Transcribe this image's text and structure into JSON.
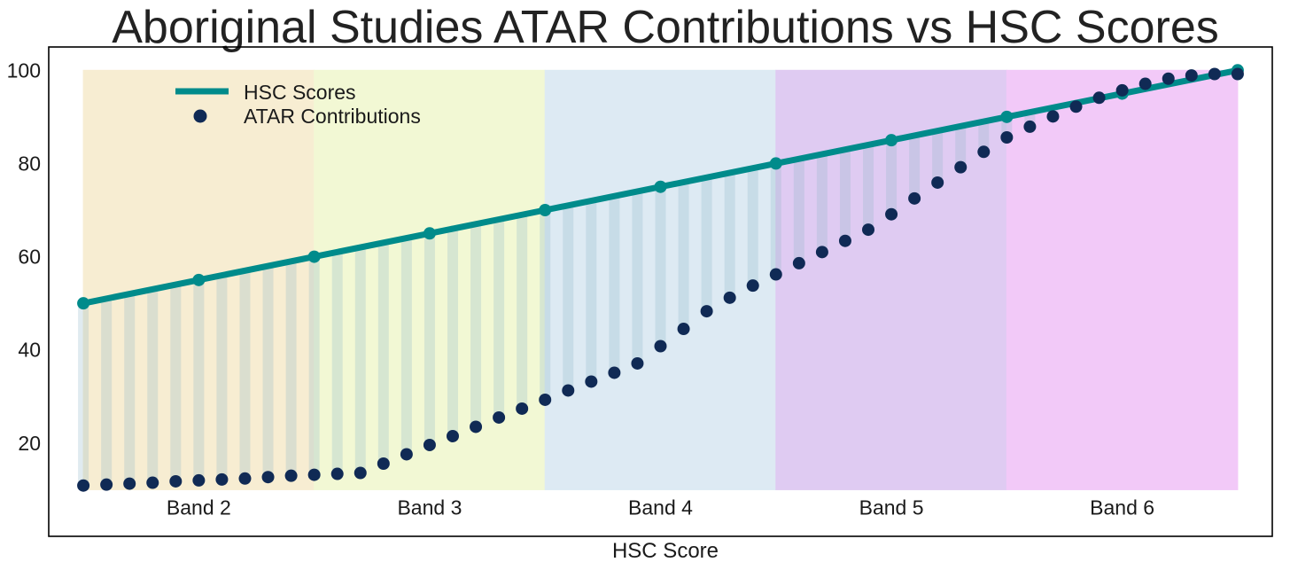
{
  "chart_data": {
    "type": "line",
    "title": "Aboriginal Studies ATAR Contributions vs HSC Scores",
    "xlabel": "HSC Score",
    "ylabel": "",
    "xlim": [
      48.5,
      101.5
    ],
    "ylim": [
      0,
      105
    ],
    "yticks": [
      20,
      40,
      60,
      80,
      100
    ],
    "grid": false,
    "legend_position": "top-left",
    "bands": [
      {
        "label": "Band 2",
        "from": 50,
        "to": 60,
        "color": "#f7edd2"
      },
      {
        "label": "Band 3",
        "from": 60,
        "to": 70,
        "color": "#f2f8d4"
      },
      {
        "label": "Band 4",
        "from": 70,
        "to": 80,
        "color": "#ddeaf3"
      },
      {
        "label": "Band 5",
        "from": 80,
        "to": 90,
        "color": "#dfcbf2"
      },
      {
        "label": "Band 6",
        "from": 90,
        "to": 100,
        "color": "#f2c9f8"
      }
    ],
    "band_range": [
      10,
      100
    ],
    "series": [
      {
        "name": "HSC Scores",
        "style": "line",
        "color": "#008b8b",
        "x": [
          50,
          55,
          60,
          65,
          70,
          75,
          80,
          85,
          90,
          95,
          100
        ],
        "values": [
          50,
          55,
          60,
          65,
          70,
          75,
          80,
          85,
          90,
          95,
          100
        ]
      },
      {
        "name": "ATAR Contributions",
        "style": "scatter",
        "color": "#102a55",
        "x": [
          50,
          51,
          52,
          53,
          54,
          55,
          56,
          57,
          58,
          59,
          60,
          61,
          62,
          63,
          64,
          65,
          66,
          67,
          68,
          69,
          70,
          71,
          72,
          73,
          74,
          75,
          76,
          77,
          78,
          79,
          80,
          81,
          82,
          83,
          84,
          85,
          86,
          87,
          88,
          89,
          90,
          91,
          92,
          93,
          94,
          95,
          96,
          97,
          98,
          99,
          100
        ],
        "values": [
          10.9,
          11.1,
          11.3,
          11.5,
          11.8,
          12.0,
          12.2,
          12.4,
          12.7,
          13.0,
          13.2,
          13.4,
          13.6,
          15.6,
          17.6,
          19.6,
          21.5,
          23.5,
          25.5,
          27.4,
          29.3,
          31.3,
          33.2,
          35.1,
          37.1,
          40.8,
          44.5,
          48.3,
          51.2,
          53.8,
          56.2,
          58.6,
          61.0,
          63.4,
          65.8,
          69.1,
          72.5,
          75.9,
          79.2,
          82.5,
          85.6,
          87.9,
          90.1,
          92.2,
          94.1,
          95.7,
          97.1,
          98.2,
          98.9,
          99.2,
          99.2
        ]
      }
    ]
  }
}
